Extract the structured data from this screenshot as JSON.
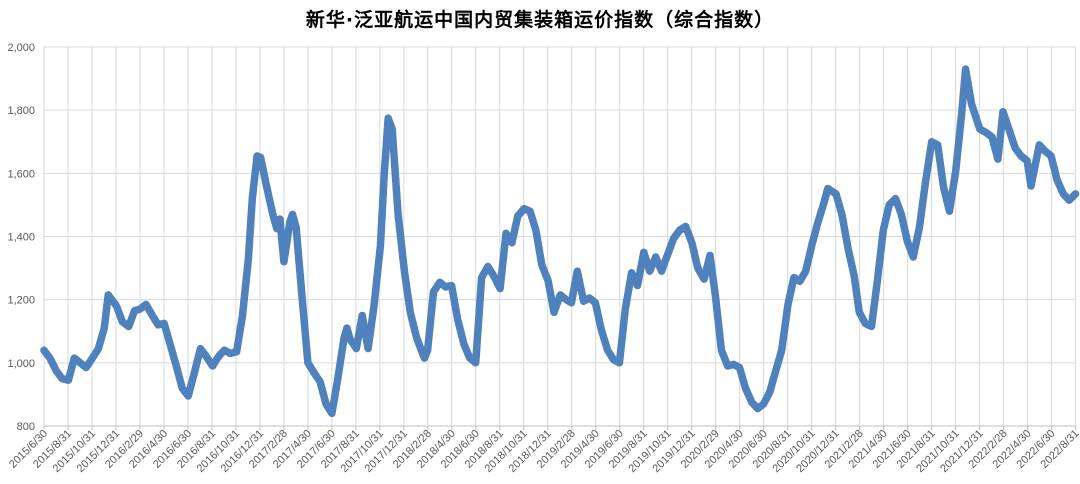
{
  "title": "新华·泛亚航运中国内贸集装箱运价指数（综合指数）",
  "colors": {
    "line": "#4f81bd",
    "grid": "#d9d9d9",
    "axis_line": "#bfbfbf",
    "tick_text": "#595959",
    "title_text": "#000000",
    "background": "#ffffff"
  },
  "chart_data": {
    "type": "line",
    "title": "新华·泛亚航运中国内贸集装箱运价指数（综合指数）",
    "legend": "none",
    "grid": true,
    "ylim": [
      800,
      2000
    ],
    "ylabel": "",
    "xlabel": "",
    "y_tick_values": [
      800,
      1000,
      1200,
      1400,
      1600,
      1800,
      2000
    ],
    "y_tick_labels": [
      "800",
      "1,000",
      "1,200",
      "1,400",
      "1,600",
      "1,800",
      "2,000"
    ],
    "x_tick_labels": [
      "2015/6/30",
      "2015/8/31",
      "2015/10/31",
      "2015/12/31",
      "2016/2/29",
      "2016/4/30",
      "2016/6/30",
      "2016/8/31",
      "2016/10/31",
      "2016/12/31",
      "2017/2/28",
      "2017/4/30",
      "2017/6/30",
      "2017/8/31",
      "2017/10/31",
      "2017/12/31",
      "2018/2/28",
      "2018/4/30",
      "2018/6/30",
      "2018/8/31",
      "2018/10/31",
      "2018/12/31",
      "2019/2/28",
      "2019/4/30",
      "2019/6/30",
      "2019/8/31",
      "2019/10/31",
      "2019/12/31",
      "2020/2/29",
      "2020/4/30",
      "2020/6/30",
      "2020/8/31",
      "2020/10/31",
      "2020/12/31",
      "2021/2/28",
      "2021/4/30",
      "2021/6/30",
      "2021/8/31",
      "2021/10/31",
      "2021/12/31",
      "2022/2/28",
      "2022/4/30",
      "2022/6/30",
      "2022/8/31"
    ],
    "series": [
      {
        "name": "综合指数",
        "color": "#4f81bd",
        "points": [
          [
            "2015/6/30",
            1040
          ],
          [
            "2015/7/15",
            1015
          ],
          [
            "2015/7/31",
            975
          ],
          [
            "2015/8/15",
            950
          ],
          [
            "2015/8/31",
            945
          ],
          [
            "2015/9/15",
            1015
          ],
          [
            "2015/9/30",
            1000
          ],
          [
            "2015/10/15",
            985
          ],
          [
            "2015/10/31",
            1015
          ],
          [
            "2015/11/15",
            1045
          ],
          [
            "2015/11/30",
            1110
          ],
          [
            "2015/12/10",
            1215
          ],
          [
            "2015/12/31",
            1180
          ],
          [
            "2016/1/15",
            1130
          ],
          [
            "2016/1/31",
            1115
          ],
          [
            "2016/2/15",
            1165
          ],
          [
            "2016/2/29",
            1170
          ],
          [
            "2016/3/15",
            1185
          ],
          [
            "2016/3/31",
            1150
          ],
          [
            "2016/4/15",
            1120
          ],
          [
            "2016/4/30",
            1125
          ],
          [
            "2016/5/15",
            1060
          ],
          [
            "2016/5/31",
            990
          ],
          [
            "2016/6/15",
            920
          ],
          [
            "2016/6/30",
            895
          ],
          [
            "2016/7/15",
            965
          ],
          [
            "2016/7/31",
            1045
          ],
          [
            "2016/8/15",
            1020
          ],
          [
            "2016/8/31",
            990
          ],
          [
            "2016/9/15",
            1020
          ],
          [
            "2016/9/30",
            1040
          ],
          [
            "2016/10/15",
            1030
          ],
          [
            "2016/10/31",
            1035
          ],
          [
            "2016/11/15",
            1150
          ],
          [
            "2016/11/30",
            1330
          ],
          [
            "2016/12/10",
            1520
          ],
          [
            "2016/12/22",
            1655
          ],
          [
            "2016/12/31",
            1650
          ],
          [
            "2017/1/15",
            1560
          ],
          [
            "2017/1/31",
            1470
          ],
          [
            "2017/2/10",
            1425
          ],
          [
            "2017/2/18",
            1455
          ],
          [
            "2017/2/28",
            1320
          ],
          [
            "2017/3/15",
            1445
          ],
          [
            "2017/3/22",
            1470
          ],
          [
            "2017/3/31",
            1430
          ],
          [
            "2017/4/15",
            1210
          ],
          [
            "2017/4/30",
            1000
          ],
          [
            "2017/5/15",
            970
          ],
          [
            "2017/5/31",
            940
          ],
          [
            "2017/6/15",
            870
          ],
          [
            "2017/6/30",
            840
          ],
          [
            "2017/7/15",
            950
          ],
          [
            "2017/7/31",
            1080
          ],
          [
            "2017/8/7",
            1110
          ],
          [
            "2017/8/15",
            1075
          ],
          [
            "2017/8/31",
            1045
          ],
          [
            "2017/9/15",
            1150
          ],
          [
            "2017/9/30",
            1045
          ],
          [
            "2017/10/15",
            1180
          ],
          [
            "2017/10/31",
            1370
          ],
          [
            "2017/11/10",
            1600
          ],
          [
            "2017/11/20",
            1775
          ],
          [
            "2017/11/30",
            1740
          ],
          [
            "2017/12/15",
            1470
          ],
          [
            "2017/12/31",
            1290
          ],
          [
            "2018/1/15",
            1160
          ],
          [
            "2018/1/31",
            1080
          ],
          [
            "2018/2/15",
            1030
          ],
          [
            "2018/2/20",
            1015
          ],
          [
            "2018/2/28",
            1040
          ],
          [
            "2018/3/15",
            1225
          ],
          [
            "2018/3/31",
            1255
          ],
          [
            "2018/4/15",
            1240
          ],
          [
            "2018/4/30",
            1245
          ],
          [
            "2018/5/15",
            1140
          ],
          [
            "2018/5/31",
            1060
          ],
          [
            "2018/6/15",
            1015
          ],
          [
            "2018/6/30",
            1000
          ],
          [
            "2018/7/15",
            1270
          ],
          [
            "2018/7/31",
            1305
          ],
          [
            "2018/8/15",
            1275
          ],
          [
            "2018/8/31",
            1235
          ],
          [
            "2018/9/15",
            1410
          ],
          [
            "2018/9/30",
            1380
          ],
          [
            "2018/10/15",
            1465
          ],
          [
            "2018/10/31",
            1488
          ],
          [
            "2018/11/15",
            1480
          ],
          [
            "2018/11/30",
            1420
          ],
          [
            "2018/12/15",
            1310
          ],
          [
            "2018/12/31",
            1260
          ],
          [
            "2019/1/15",
            1160
          ],
          [
            "2019/1/31",
            1215
          ],
          [
            "2019/2/15",
            1200
          ],
          [
            "2019/2/28",
            1190
          ],
          [
            "2019/3/15",
            1290
          ],
          [
            "2019/3/31",
            1195
          ],
          [
            "2019/4/15",
            1205
          ],
          [
            "2019/4/30",
            1190
          ],
          [
            "2019/5/15",
            1105
          ],
          [
            "2019/5/31",
            1040
          ],
          [
            "2019/6/15",
            1010
          ],
          [
            "2019/6/30",
            1000
          ],
          [
            "2019/7/15",
            1170
          ],
          [
            "2019/7/31",
            1285
          ],
          [
            "2019/8/15",
            1245
          ],
          [
            "2019/8/31",
            1350
          ],
          [
            "2019/9/15",
            1290
          ],
          [
            "2019/9/30",
            1335
          ],
          [
            "2019/10/15",
            1290
          ],
          [
            "2019/10/31",
            1345
          ],
          [
            "2019/11/15",
            1395
          ],
          [
            "2019/11/30",
            1420
          ],
          [
            "2019/12/15",
            1432
          ],
          [
            "2019/12/31",
            1380
          ],
          [
            "2020/1/15",
            1300
          ],
          [
            "2020/1/31",
            1265
          ],
          [
            "2020/2/15",
            1340
          ],
          [
            "2020/2/29",
            1210
          ],
          [
            "2020/3/15",
            1040
          ],
          [
            "2020/3/31",
            990
          ],
          [
            "2020/4/15",
            995
          ],
          [
            "2020/4/30",
            985
          ],
          [
            "2020/5/15",
            920
          ],
          [
            "2020/5/31",
            875
          ],
          [
            "2020/6/15",
            855
          ],
          [
            "2020/6/30",
            870
          ],
          [
            "2020/7/15",
            905
          ],
          [
            "2020/7/31",
            975
          ],
          [
            "2020/8/15",
            1040
          ],
          [
            "2020/8/31",
            1185
          ],
          [
            "2020/9/15",
            1270
          ],
          [
            "2020/9/30",
            1258
          ],
          [
            "2020/10/15",
            1290
          ],
          [
            "2020/10/31",
            1375
          ],
          [
            "2020/11/15",
            1445
          ],
          [
            "2020/11/30",
            1505
          ],
          [
            "2020/12/10",
            1552
          ],
          [
            "2020/12/31",
            1535
          ],
          [
            "2021/1/15",
            1470
          ],
          [
            "2021/1/31",
            1360
          ],
          [
            "2021/2/15",
            1275
          ],
          [
            "2021/2/28",
            1160
          ],
          [
            "2021/3/15",
            1125
          ],
          [
            "2021/3/31",
            1115
          ],
          [
            "2021/4/15",
            1260
          ],
          [
            "2021/4/30",
            1420
          ],
          [
            "2021/5/15",
            1500
          ],
          [
            "2021/5/31",
            1520
          ],
          [
            "2021/6/15",
            1470
          ],
          [
            "2021/6/30",
            1385
          ],
          [
            "2021/7/15",
            1335
          ],
          [
            "2021/7/31",
            1430
          ],
          [
            "2021/8/15",
            1570
          ],
          [
            "2021/8/31",
            1700
          ],
          [
            "2021/9/15",
            1690
          ],
          [
            "2021/9/30",
            1555
          ],
          [
            "2021/10/15",
            1480
          ],
          [
            "2021/10/31",
            1610
          ],
          [
            "2021/11/15",
            1790
          ],
          [
            "2021/11/25",
            1930
          ],
          [
            "2021/12/10",
            1820
          ],
          [
            "2021/12/31",
            1740
          ],
          [
            "2022/1/15",
            1730
          ],
          [
            "2022/1/31",
            1715
          ],
          [
            "2022/2/15",
            1645
          ],
          [
            "2022/2/28",
            1795
          ],
          [
            "2022/3/15",
            1740
          ],
          [
            "2022/3/31",
            1680
          ],
          [
            "2022/4/15",
            1655
          ],
          [
            "2022/4/30",
            1640
          ],
          [
            "2022/5/10",
            1560
          ],
          [
            "2022/5/31",
            1690
          ],
          [
            "2022/6/15",
            1670
          ],
          [
            "2022/6/30",
            1655
          ],
          [
            "2022/7/15",
            1580
          ],
          [
            "2022/7/31",
            1535
          ],
          [
            "2022/8/15",
            1515
          ],
          [
            "2022/8/31",
            1535
          ]
        ]
      }
    ]
  }
}
